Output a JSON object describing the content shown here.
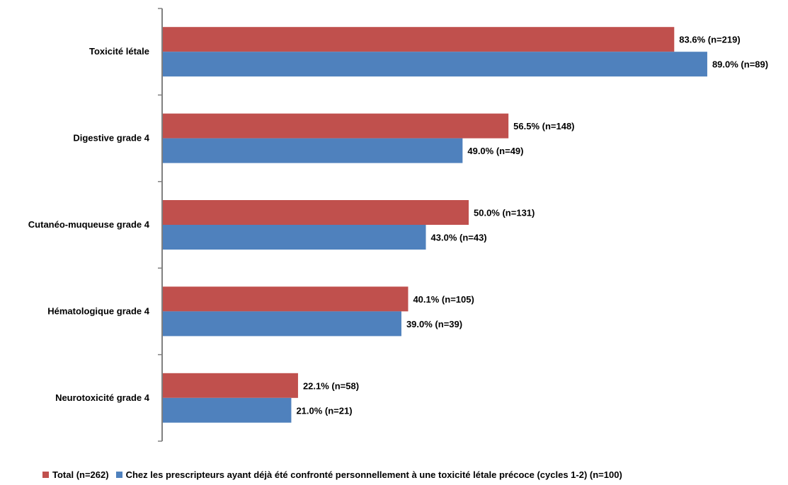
{
  "chart_data": {
    "type": "bar",
    "orientation": "horizontal",
    "categories": [
      "Toxicité létale",
      "Digestive grade 4",
      "Cutanéo-muqueuse grade 4",
      "Hématologique grade 4",
      "Neurotoxicité grade 4"
    ],
    "series": [
      {
        "name": "Total (n=262)",
        "color": "#c0504d",
        "values": [
          83.6,
          56.5,
          50.0,
          40.1,
          22.1
        ],
        "labels": [
          "83.6% (n=219)",
          "56.5% (n=148)",
          "50.0% (n=131)",
          "40.1% (n=105)",
          "22.1% (n=58)"
        ]
      },
      {
        "name": "Chez les prescripteurs ayant déjà été confronté personnellement à une toxicité létale précoce (cycles 1-2) (n=100)",
        "color": "#4f81bd",
        "values": [
          89.0,
          49.0,
          43.0,
          39.0,
          21.0
        ],
        "labels": [
          "89.0% (n=89)",
          "49.0% (n=49)",
          "43.0% (n=43)",
          "39.0% (n=39)",
          "21.0% (n=21)"
        ]
      }
    ],
    "xlim": [
      0,
      100
    ],
    "grid": false,
    "legend_position": "bottom"
  }
}
